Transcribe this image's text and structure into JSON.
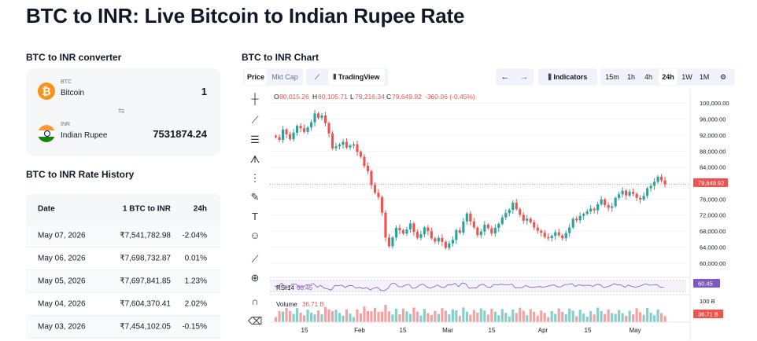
{
  "page": {
    "title": "BTC to INR: Live Bitcoin to Indian Rupee Rate"
  },
  "converter": {
    "heading": "BTC to INR converter",
    "from": {
      "code": "BTC",
      "name": "Bitcoin",
      "amount": "1",
      "icon": "bitcoin-icon"
    },
    "to": {
      "code": "INR",
      "name": "Indian Rupee",
      "amount": "7531874.24",
      "icon": "india-flag-icon"
    },
    "swap_icon": "⇆"
  },
  "history": {
    "heading": "BTC to INR Rate History",
    "columns": [
      "Date",
      "1 BTC to INR",
      "24h"
    ],
    "rows": [
      [
        "May 07, 2026",
        "₹7,541,782.98",
        "-2.04%"
      ],
      [
        "May 06, 2026",
        "₹7,698,732.87",
        "0.01%"
      ],
      [
        "May 05, 2026",
        "₹7,697,841.85",
        "1.23%"
      ],
      [
        "May 04, 2026",
        "₹7,604,370.41",
        "2.02%"
      ],
      [
        "May 03, 2026",
        "₹7,454,102.05",
        "-0.15%"
      ]
    ]
  },
  "chart": {
    "heading": "BTC to INR Chart",
    "toolbar": {
      "price": "Price",
      "mktcap": "Mkt Cap",
      "tradingview": "TradingView",
      "indicators": "Indicators",
      "intervals": [
        "15m",
        "1h",
        "4h",
        "24h",
        "1W",
        "1M"
      ],
      "active_interval": "24h"
    },
    "ohlc": {
      "o": "O",
      "o_val": "80,015.26",
      "h": "H",
      "h_val": "80,105.71",
      "l": "L",
      "l_val": "79,216.34",
      "c": "C",
      "c_val": "79,649.92",
      "chg": "-360.06 (-0.45%)"
    },
    "last_price": "79,649.92",
    "rsi": {
      "label": "RSI",
      "period": "14",
      "value": "60.45"
    },
    "volume": {
      "label": "Volume",
      "value": "36.71 B",
      "axis_top": "100 B"
    },
    "colors": {
      "up": "#26a69a",
      "down": "#ef5350",
      "rsi": "#7e57c2",
      "accent": "#2962ff"
    }
  },
  "chart_data": {
    "type": "candlestick",
    "x_ticks": [
      "15",
      "Feb",
      "15",
      "Mar",
      "15",
      "Apr",
      "15",
      "May"
    ],
    "y_ticks": [
      100000,
      96000,
      92000,
      88000,
      84000,
      80000,
      76000,
      72000,
      68000,
      64000,
      60000
    ],
    "y_tick_labels": [
      "100,000.00",
      "96,000.00",
      "92,000.00",
      "88,000.00",
      "84,000.00",
      "80,000.00",
      "76,000.00",
      "72,000.00",
      "68,000.00",
      "64,000.00",
      "60,000.00"
    ],
    "ylim": [
      58000,
      102000
    ],
    "closes": [
      91500,
      90800,
      93400,
      92200,
      91000,
      92600,
      94300,
      93700,
      92800,
      93900,
      95200,
      97400,
      96300,
      96900,
      95000,
      92400,
      88700,
      89200,
      89600,
      90300,
      88900,
      89400,
      89700,
      87800,
      86600,
      84300,
      83000,
      79500,
      77600,
      76500,
      72600,
      66400,
      64200,
      66400,
      68800,
      68200,
      67400,
      68400,
      69900,
      67800,
      66300,
      67200,
      68900,
      68000,
      66200,
      65400,
      66300,
      65300,
      63800,
      64900,
      65800,
      68200,
      67600,
      70400,
      72400,
      70400,
      68900,
      67000,
      67900,
      69600,
      68700,
      67400,
      68800,
      69800,
      71400,
      72500,
      73300,
      75100,
      73500,
      72100,
      70600,
      71100,
      70200,
      68900,
      68100,
      67600,
      66500,
      66200,
      66800,
      67700,
      66900,
      66200,
      67500,
      68900,
      71100,
      70700,
      71800,
      72300,
      72900,
      73600,
      73200,
      74700,
      75900,
      74500,
      73800,
      74200,
      76300,
      77200,
      78100,
      76900,
      77800,
      77300,
      76300,
      75900,
      76800,
      78700,
      79300,
      80300,
      81600,
      80700,
      79650
    ],
    "rsi_value": 60.45,
    "last_volume_b": 36.71
  }
}
